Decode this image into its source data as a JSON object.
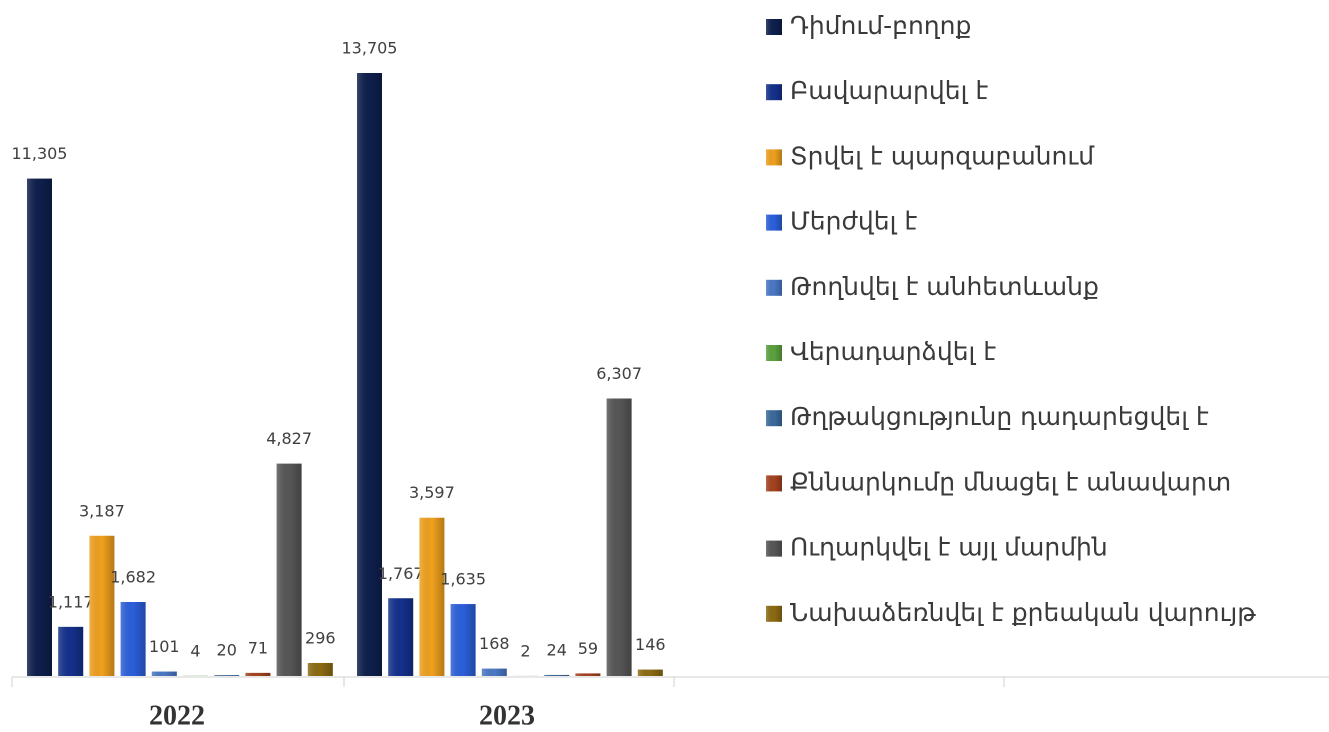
{
  "chart_data": {
    "type": "bar",
    "categories": [
      "2022",
      "2023"
    ],
    "series": [
      {
        "name": "Դիմում-բողոք",
        "color": "#0e1f4d",
        "values": [
          11305,
          13705
        ],
        "value_labels": [
          "11,305",
          "13,705"
        ]
      },
      {
        "name": "Բավարարվել է",
        "color": "#14318c",
        "values": [
          1117,
          1767
        ],
        "value_labels": [
          "1,117",
          "1,767"
        ]
      },
      {
        "name": "Տրվել է պարզաբանում",
        "color": "#f0a11e",
        "values": [
          3187,
          3597
        ],
        "value_labels": [
          "3,187",
          "3,597"
        ]
      },
      {
        "name": "Մերժվել է",
        "color": "#2b5fdb",
        "values": [
          1682,
          1635
        ],
        "value_labels": [
          "1,682",
          "1,635"
        ]
      },
      {
        "name": "Թողնվել է անհետևանք",
        "color": "#4a78c6",
        "values": [
          101,
          168
        ],
        "value_labels": [
          "101",
          "168"
        ]
      },
      {
        "name": "Վերադարձվել է",
        "color": "#5aa33f",
        "values": [
          4,
          2
        ],
        "value_labels": [
          "4",
          "2"
        ]
      },
      {
        "name": "Թղթակցությունը դադարեցվել է",
        "color": "#3b6b9c",
        "values": [
          20,
          24
        ],
        "value_labels": [
          "20",
          "24"
        ]
      },
      {
        "name": "Քննարկումը մնացել է անավարտ",
        "color": "#a5421f",
        "values": [
          71,
          59
        ],
        "value_labels": [
          "71",
          "59"
        ]
      },
      {
        "name": "Ուղարկվել է այլ մարմին",
        "color": "#575757",
        "values": [
          4827,
          6307
        ],
        "value_labels": [
          "4,827",
          "6,307"
        ]
      },
      {
        "name": "Նախաձեռնվել է քրեական վարույթ",
        "color": "#8c6b12",
        "values": [
          296,
          146
        ],
        "value_labels": [
          "296",
          "146"
        ]
      }
    ],
    "legend": "right"
  }
}
